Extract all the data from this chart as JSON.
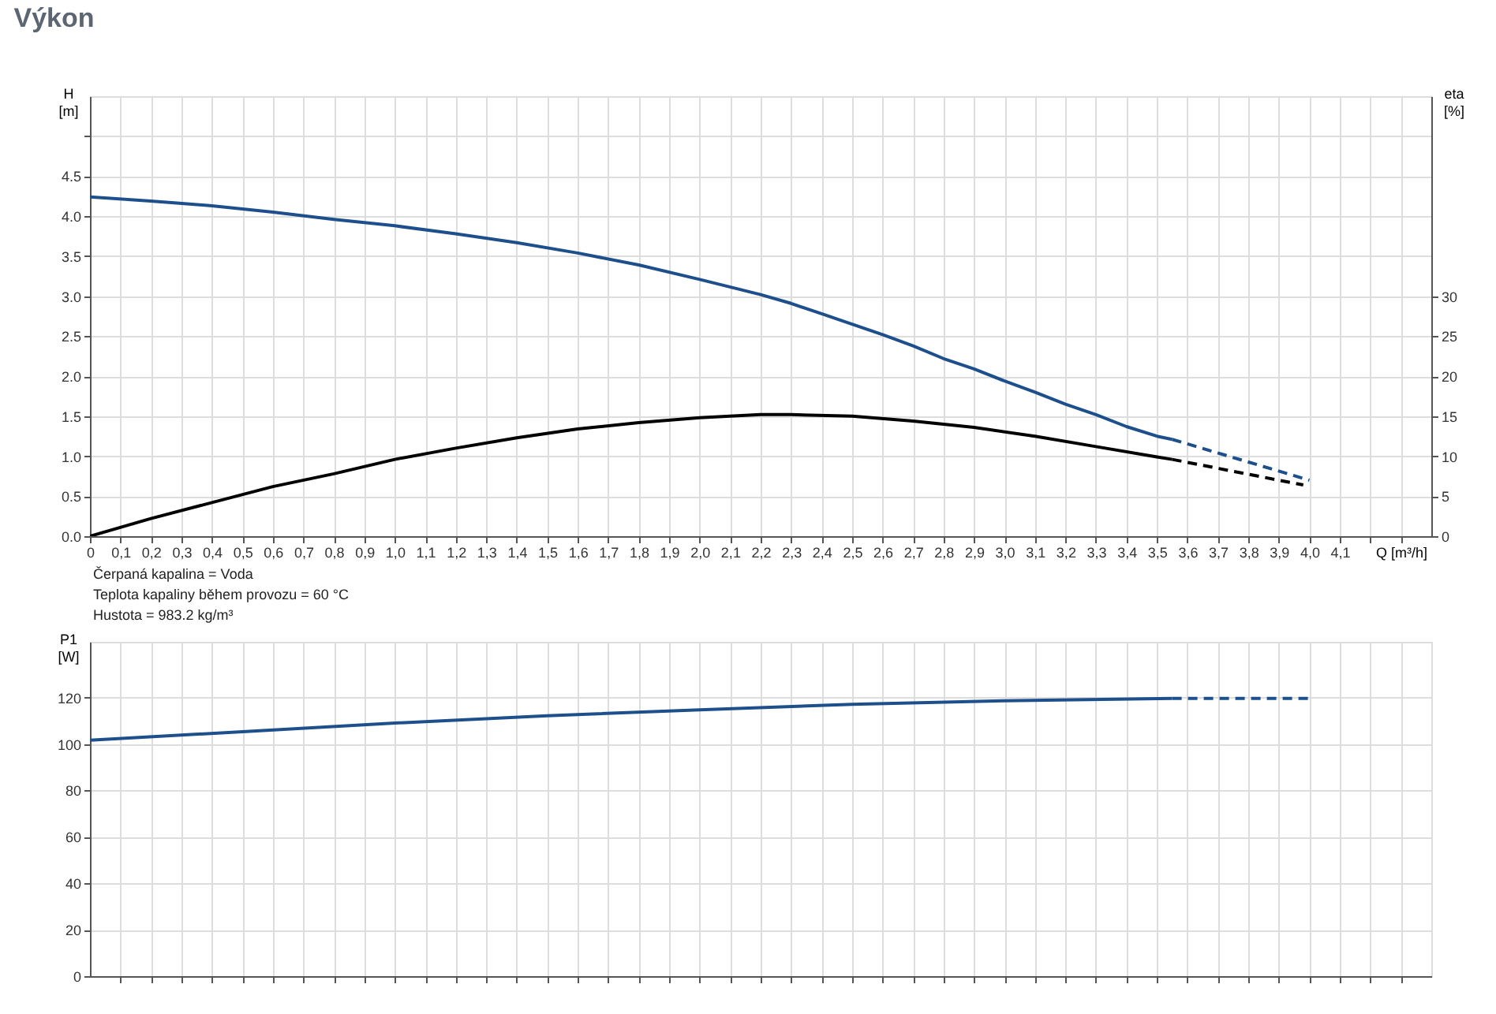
{
  "chart_data": [
    {
      "type": "line",
      "title": "Výkon",
      "xlabel": "Q [m³/h]",
      "ylabel": "H\n[m]",
      "y2label": "eta\n[%]",
      "annotations": [
        "Čerpaná kapalina = Voda",
        "Teplota kapaliny během provozu = 60 °C",
        "Hustota = 983.2 kg/m³"
      ],
      "xlim": [
        0,
        4.4
      ],
      "ylim": [
        0,
        5.5
      ],
      "y2lim": [
        0,
        55
      ],
      "xticks": [
        0,
        {
          "value": 0.1,
          "label": "0,1"
        },
        {
          "value": 0.2,
          "label": "0,2"
        },
        {
          "value": 0.3,
          "label": "0,3"
        },
        {
          "value": 0.4,
          "label": "0,4"
        },
        {
          "value": 0.5,
          "label": "0,5"
        },
        {
          "value": 0.6,
          "label": "0,6"
        },
        {
          "value": 0.7,
          "label": "0,7"
        },
        {
          "value": 0.8,
          "label": "0,8"
        },
        {
          "value": 0.9,
          "label": "0,9"
        },
        {
          "value": 1.0,
          "label": "1,0"
        },
        {
          "value": 1.1,
          "label": "1,1"
        },
        {
          "value": 1.2,
          "label": "1,2"
        },
        {
          "value": 1.3,
          "label": "1,3"
        },
        {
          "value": 1.4,
          "label": "1,4"
        },
        {
          "value": 1.5,
          "label": "1,5"
        },
        {
          "value": 1.6,
          "label": "1,6"
        },
        {
          "value": 1.7,
          "label": "1,7"
        },
        {
          "value": 1.8,
          "label": "1,8"
        },
        {
          "value": 1.9,
          "label": "1,9"
        },
        {
          "value": 2.0,
          "label": "2,0"
        },
        {
          "value": 2.1,
          "label": "2,1"
        },
        {
          "value": 2.2,
          "label": "2,2"
        },
        {
          "value": 2.3,
          "label": "2,3"
        },
        {
          "value": 2.4,
          "label": "2,4"
        },
        {
          "value": 2.5,
          "label": "2,5"
        },
        {
          "value": 2.6,
          "label": "2,6"
        },
        {
          "value": 2.7,
          "label": "2,7"
        },
        {
          "value": 2.8,
          "label": "2,8"
        },
        {
          "value": 2.9,
          "label": "2,9"
        },
        {
          "value": 3.0,
          "label": "3,0"
        },
        {
          "value": 3.1,
          "label": "3,1"
        },
        {
          "value": 3.2,
          "label": "3,2"
        },
        {
          "value": 3.3,
          "label": "3,3"
        },
        {
          "value": 3.4,
          "label": "3,4"
        },
        {
          "value": 3.5,
          "label": "3,5"
        },
        {
          "value": 3.6,
          "label": "3,6"
        },
        {
          "value": 3.7,
          "label": "3,7"
        },
        {
          "value": 3.8,
          "label": "3,8"
        },
        {
          "value": 3.9,
          "label": "3,9"
        },
        {
          "value": 4.0,
          "label": "4,0"
        },
        {
          "value": 4.1,
          "label": "4,1"
        },
        {
          "value": 4.2,
          "label": null
        },
        {
          "value": 4.3,
          "label": null
        }
      ],
      "yticks": [
        {
          "value": 0,
          "label": "0.0"
        },
        0.5,
        {
          "value": 1,
          "label": "1.0"
        },
        1.5,
        {
          "value": 2,
          "label": "2.0"
        },
        2.5,
        {
          "value": 3,
          "label": "3.0"
        },
        3.5,
        {
          "value": 4,
          "label": "4.0"
        },
        4.5,
        {
          "value": 5,
          "label": null
        }
      ],
      "y2ticks": [
        0,
        5,
        10,
        15,
        20,
        25,
        30
      ],
      "grid": true,
      "legend": false,
      "series": [
        {
          "color": "#1d4f8c",
          "line_style": "solid",
          "x": [
            0,
            0.2,
            0.4,
            0.6,
            0.8,
            1.0,
            1.2,
            1.4,
            1.6,
            1.8,
            2.0,
            2.2,
            2.3,
            2.4,
            2.5,
            2.6,
            2.7,
            2.8,
            2.9,
            3.0,
            3.1,
            3.2,
            3.3,
            3.4,
            3.5,
            3.55
          ],
          "values": [
            4.24,
            4.19,
            4.13,
            4.05,
            3.96,
            3.88,
            3.78,
            3.67,
            3.54,
            3.39,
            3.21,
            3.02,
            2.91,
            2.78,
            2.65,
            2.52,
            2.38,
            2.22,
            2.09,
            1.94,
            1.8,
            1.65,
            1.52,
            1.37,
            1.25,
            1.21
          ]
        },
        {
          "color": "#1d4f8c",
          "line_style": "dashed",
          "x": [
            3.55,
            4.0
          ],
          "values": [
            1.21,
            0.7
          ]
        },
        {
          "color": "#000000",
          "line_style": "solid",
          "axis": "y2",
          "x": [
            0,
            0.2,
            0.4,
            0.6,
            0.8,
            1.0,
            1.2,
            1.4,
            1.6,
            1.8,
            2.0,
            2.2,
            2.3,
            2.5,
            2.7,
            2.9,
            3.1,
            3.3,
            3.5,
            3.55
          ],
          "values": [
            0,
            2.2,
            4.2,
            6.2,
            7.8,
            9.6,
            11.0,
            12.3,
            13.4,
            14.2,
            14.8,
            15.2,
            15.2,
            15.0,
            14.4,
            13.6,
            12.5,
            11.2,
            9.9,
            9.6
          ]
        },
        {
          "color": "#000000",
          "line_style": "dashed",
          "axis": "y2",
          "x": [
            3.55,
            3.98
          ],
          "values": [
            9.6,
            6.4
          ]
        }
      ]
    },
    {
      "type": "line",
      "ylabel": "P1\n[W]",
      "tick_labels": "y",
      "xlim": [
        0,
        4.4
      ],
      "ylim": [
        0,
        144
      ],
      "xticks": [
        {
          "value": 0.1,
          "label": null
        },
        {
          "value": 0.2,
          "label": null
        },
        {
          "value": 0.3,
          "label": null
        },
        {
          "value": 0.4,
          "label": null
        },
        {
          "value": 0.5,
          "label": null
        },
        {
          "value": 0.6,
          "label": null
        },
        {
          "value": 0.7,
          "label": null
        },
        {
          "value": 0.8,
          "label": null
        },
        {
          "value": 0.9,
          "label": null
        },
        {
          "value": 1.0,
          "label": null
        },
        {
          "value": 1.1,
          "label": null
        },
        {
          "value": 1.2,
          "label": null
        },
        {
          "value": 1.3,
          "label": null
        },
        {
          "value": 1.4,
          "label": null
        },
        {
          "value": 1.5,
          "label": null
        },
        {
          "value": 1.6,
          "label": null
        },
        {
          "value": 1.7,
          "label": null
        },
        {
          "value": 1.8,
          "label": null
        },
        {
          "value": 1.9,
          "label": null
        },
        {
          "value": 2.0,
          "label": null
        },
        {
          "value": 2.1,
          "label": null
        },
        {
          "value": 2.2,
          "label": null
        },
        {
          "value": 2.3,
          "label": null
        },
        {
          "value": 2.4,
          "label": null
        },
        {
          "value": 2.5,
          "label": null
        },
        {
          "value": 2.6,
          "label": null
        },
        {
          "value": 2.7,
          "label": null
        },
        {
          "value": 2.8,
          "label": null
        },
        {
          "value": 2.9,
          "label": null
        },
        {
          "value": 3.0,
          "label": null
        },
        {
          "value": 3.1,
          "label": null
        },
        {
          "value": 3.2,
          "label": null
        },
        {
          "value": 3.3,
          "label": null
        },
        {
          "value": 3.4,
          "label": null
        },
        {
          "value": 3.5,
          "label": null
        },
        {
          "value": 3.6,
          "label": null
        },
        {
          "value": 3.7,
          "label": null
        },
        {
          "value": 3.8,
          "label": null
        },
        {
          "value": 3.9,
          "label": null
        },
        {
          "value": 4.0,
          "label": null
        },
        {
          "value": 4.1,
          "label": null
        },
        {
          "value": 4.2,
          "label": null
        },
        {
          "value": 4.3,
          "label": null
        }
      ],
      "yticks": [
        0,
        20,
        40,
        60,
        80,
        100,
        120
      ],
      "grid": true,
      "legend": false,
      "series": [
        {
          "color": "#1d4f8c",
          "line_style": "solid",
          "x": [
            0,
            0.5,
            1.0,
            1.5,
            2.0,
            2.5,
            3.0,
            3.55
          ],
          "values": [
            101.6,
            105.3,
            109.0,
            112.2,
            114.7,
            117.1,
            118.6,
            119.6
          ]
        },
        {
          "color": "#1d4f8c",
          "line_style": "dashed",
          "x": [
            3.55,
            4.0
          ],
          "values": [
            119.6,
            119.6
          ]
        }
      ]
    }
  ]
}
